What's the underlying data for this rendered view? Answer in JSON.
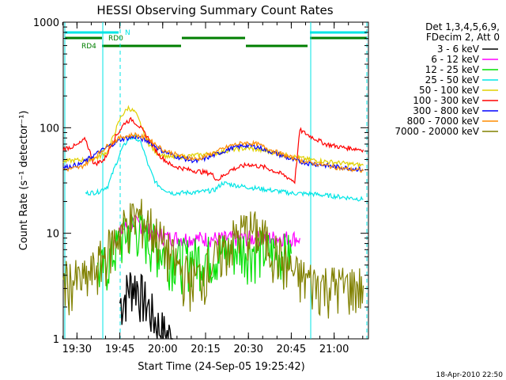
{
  "chart_data": {
    "type": "line",
    "title": "HESSI Observing Summary Count Rates",
    "xlabel": "Start Time (24-Sep-05 19:25:42)",
    "ylabel": "Count Rate (s⁻¹ detector⁻¹)",
    "yscale": "log",
    "ylim": [
      1,
      1000
    ],
    "xlim_minutes": [
      19.42,
      21.2
    ],
    "x_ticks": [
      "19:30",
      "19:45",
      "20:00",
      "20:15",
      "20:30",
      "20:45",
      "21:00"
    ],
    "y_ticks": [
      "1",
      "10",
      "100",
      "1000"
    ],
    "legend_header": [
      "Det 1,3,4,5,6,9,",
      "FDecim 2, Att 0"
    ],
    "footnote": "18-Apr-2010 22:50",
    "flag_bars": [
      {
        "label": "N",
        "color": "#00e5e5"
      },
      {
        "label": "RD0",
        "color": "#007f00"
      },
      {
        "label": "RD4",
        "color": "#007f00"
      }
    ],
    "series": [
      {
        "name": "3 - 6 keV",
        "color": "#000000",
        "points": [
          [
            19.75,
            2.2
          ],
          [
            19.78,
            2.6
          ],
          [
            19.8,
            3.1
          ],
          [
            19.82,
            3.4
          ],
          [
            19.85,
            3.3
          ],
          [
            19.88,
            2.6
          ],
          [
            19.92,
            2.0
          ],
          [
            19.95,
            1.6
          ],
          [
            19.98,
            1.3
          ],
          [
            20.02,
            1.1
          ],
          [
            20.06,
            1.0
          ]
        ]
      },
      {
        "name": "6 - 12 keV",
        "color": "#ff00ff",
        "points": [
          [
            19.72,
            8.8
          ],
          [
            19.76,
            10.5
          ],
          [
            19.8,
            12.2
          ],
          [
            19.84,
            12.6
          ],
          [
            19.88,
            11.8
          ],
          [
            19.92,
            10.6
          ],
          [
            19.97,
            9.7
          ],
          [
            20.03,
            9.1
          ],
          [
            20.2,
            8.9
          ],
          [
            20.35,
            8.9
          ],
          [
            20.5,
            9.0
          ],
          [
            20.7,
            9.1
          ],
          [
            20.8,
            9.0
          ]
        ]
      },
      {
        "name": "12 - 25 keV",
        "color": "#00e000",
        "points": [
          [
            19.62,
            4.2
          ],
          [
            19.68,
            5.4
          ],
          [
            19.74,
            7.8
          ],
          [
            19.8,
            10.8
          ],
          [
            19.84,
            11.4
          ],
          [
            19.88,
            10.2
          ],
          [
            19.93,
            8.5
          ],
          [
            20.0,
            6.8
          ],
          [
            20.1,
            5.8
          ],
          [
            20.3,
            6.3
          ],
          [
            20.45,
            7.4
          ],
          [
            20.6,
            6.9
          ],
          [
            20.75,
            6.4
          ]
        ]
      },
      {
        "name": "25 - 50 keV",
        "color": "#00e5e5",
        "points": [
          [
            19.55,
            24.0
          ],
          [
            19.62,
            24.5
          ],
          [
            19.68,
            28.0
          ],
          [
            19.72,
            42.0
          ],
          [
            19.76,
            62.0
          ],
          [
            19.8,
            78.0
          ],
          [
            19.84,
            82.0
          ],
          [
            19.88,
            68.0
          ],
          [
            19.92,
            42.0
          ],
          [
            19.96,
            30.0
          ],
          [
            20.0,
            26.5
          ],
          [
            20.06,
            24.0
          ],
          [
            20.2,
            24.5
          ],
          [
            20.3,
            25.5
          ],
          [
            20.35,
            30.0
          ],
          [
            20.45,
            28.0
          ],
          [
            20.6,
            26.0
          ],
          [
            20.75,
            24.0
          ],
          [
            20.88,
            23.5
          ],
          [
            21.05,
            22.0
          ],
          [
            21.17,
            21.0
          ]
        ]
      },
      {
        "name": "50 - 100 keV",
        "color": "#e0d000",
        "points": [
          [
            19.42,
            48.0
          ],
          [
            19.55,
            50.0
          ],
          [
            19.62,
            52.0
          ],
          [
            19.68,
            60.0
          ],
          [
            19.72,
            90.0
          ],
          [
            19.76,
            130.0
          ],
          [
            19.8,
            155.0
          ],
          [
            19.84,
            140.0
          ],
          [
            19.88,
            100.0
          ],
          [
            19.92,
            70.0
          ],
          [
            19.96,
            58.0
          ],
          [
            20.05,
            52.0
          ],
          [
            20.2,
            55.0
          ],
          [
            20.3,
            57.0
          ],
          [
            20.4,
            62.0
          ],
          [
            20.5,
            64.0
          ],
          [
            20.6,
            60.0
          ],
          [
            20.72,
            55.0
          ],
          [
            20.85,
            50.0
          ],
          [
            21.0,
            47.0
          ],
          [
            21.17,
            44.0
          ]
        ]
      },
      {
        "name": "100 - 300 keV",
        "color": "#ff0000",
        "points": [
          [
            19.42,
            63.0
          ],
          [
            19.5,
            68.0
          ],
          [
            19.55,
            78.0
          ],
          [
            19.6,
            45.0
          ],
          [
            19.66,
            50.0
          ],
          [
            19.72,
            80.0
          ],
          [
            19.78,
            112.0
          ],
          [
            19.82,
            120.0
          ],
          [
            19.86,
            105.0
          ],
          [
            19.92,
            78.0
          ],
          [
            19.98,
            55.0
          ],
          [
            20.05,
            44.0
          ],
          [
            20.15,
            40.0
          ],
          [
            20.28,
            37.0
          ],
          [
            20.32,
            32.0
          ],
          [
            20.4,
            40.0
          ],
          [
            20.5,
            45.0
          ],
          [
            20.6,
            42.0
          ],
          [
            20.7,
            36.0
          ],
          [
            20.77,
            31.0
          ],
          [
            20.8,
            95.0
          ],
          [
            20.85,
            85.0
          ],
          [
            20.95,
            70.0
          ],
          [
            21.05,
            65.0
          ],
          [
            21.17,
            62.0
          ]
        ]
      },
      {
        "name": "300 - 800 keV",
        "color": "#0000ff",
        "points": [
          [
            19.42,
            42.0
          ],
          [
            19.52,
            45.0
          ],
          [
            19.6,
            55.0
          ],
          [
            19.68,
            66.0
          ],
          [
            19.76,
            78.0
          ],
          [
            19.84,
            82.0
          ],
          [
            19.92,
            74.0
          ],
          [
            20.0,
            60.0
          ],
          [
            20.1,
            52.0
          ],
          [
            20.2,
            48.0
          ],
          [
            20.3,
            55.0
          ],
          [
            20.4,
            64.0
          ],
          [
            20.48,
            68.0
          ],
          [
            20.55,
            66.0
          ],
          [
            20.65,
            58.0
          ],
          [
            20.75,
            50.0
          ],
          [
            20.85,
            46.0
          ],
          [
            20.95,
            44.0
          ],
          [
            21.05,
            42.0
          ],
          [
            21.17,
            40.0
          ]
        ]
      },
      {
        "name": "800 - 7000 keV",
        "color": "#ff8c00",
        "points": [
          [
            19.42,
            40.0
          ],
          [
            19.52,
            42.0
          ],
          [
            19.6,
            52.0
          ],
          [
            19.68,
            68.0
          ],
          [
            19.76,
            82.0
          ],
          [
            19.84,
            86.0
          ],
          [
            19.92,
            78.0
          ],
          [
            20.0,
            62.0
          ],
          [
            20.1,
            54.0
          ],
          [
            20.2,
            50.0
          ],
          [
            20.3,
            58.0
          ],
          [
            20.4,
            68.0
          ],
          [
            20.48,
            72.0
          ],
          [
            20.55,
            70.0
          ],
          [
            20.65,
            60.0
          ],
          [
            20.75,
            52.0
          ],
          [
            20.85,
            47.0
          ],
          [
            20.95,
            44.0
          ],
          [
            21.05,
            41.0
          ],
          [
            21.17,
            39.0
          ]
        ]
      },
      {
        "name": "7000 - 20000 keV",
        "color": "#808000",
        "points": [
          [
            19.42,
            3.6
          ],
          [
            19.55,
            3.6
          ],
          [
            19.62,
            5.0
          ],
          [
            19.68,
            7.0
          ],
          [
            19.74,
            10.0
          ],
          [
            19.8,
            13.0
          ],
          [
            19.86,
            14.5
          ],
          [
            19.92,
            12.5
          ],
          [
            19.98,
            9.0
          ],
          [
            20.05,
            6.0
          ],
          [
            20.12,
            4.2
          ],
          [
            20.2,
            3.8
          ],
          [
            20.3,
            5.5
          ],
          [
            20.4,
            8.5
          ],
          [
            20.48,
            11.0
          ],
          [
            20.55,
            10.5
          ],
          [
            20.62,
            8.0
          ],
          [
            20.7,
            5.5
          ],
          [
            20.78,
            4.0
          ],
          [
            20.9,
            3.4
          ],
          [
            21.05,
            3.2
          ],
          [
            21.17,
            3.2
          ]
        ]
      }
    ]
  }
}
